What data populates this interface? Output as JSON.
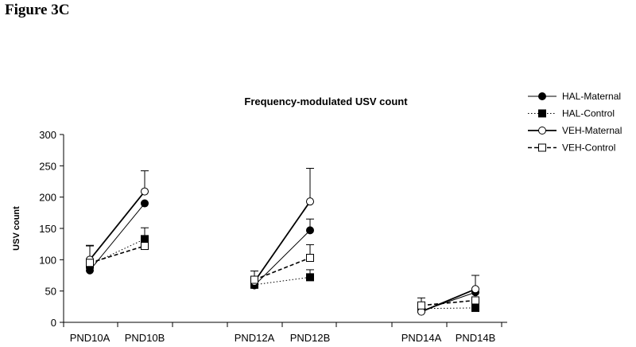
{
  "figure_label": "Figure 3C",
  "chart_data": {
    "type": "line",
    "title": "Frequency-modulated USV count",
    "xlabel": "",
    "ylabel": "USV count",
    "ylim": [
      0,
      300
    ],
    "yticks": [
      0,
      50,
      100,
      150,
      200,
      250,
      300
    ],
    "categories": [
      "PND10A",
      "PND10B",
      "PND12A",
      "PND12B",
      "PND14A",
      "PND14B"
    ],
    "segments": [
      [
        "PND10A",
        "PND10B"
      ],
      [
        "PND12A",
        "PND12B"
      ],
      [
        "PND14A",
        "PND14B"
      ]
    ],
    "legend_position": "right",
    "series": [
      {
        "name": "HAL-Maternal",
        "marker": "filled-circle",
        "line": "solid-thin",
        "color": "#000000",
        "values": [
          83,
          190,
          59,
          147,
          18,
          48
        ],
        "error_plus": [
          0,
          0,
          0,
          18,
          0,
          0
        ]
      },
      {
        "name": "HAL-Control",
        "marker": "filled-square",
        "line": "dotted",
        "color": "#000000",
        "values": [
          92,
          133,
          60,
          72,
          22,
          23
        ],
        "error_plus": [
          0,
          18,
          0,
          12,
          0,
          0
        ]
      },
      {
        "name": "VEH-Maternal",
        "marker": "open-circle",
        "line": "solid-thick",
        "color": "#000000",
        "values": [
          100,
          209,
          65,
          193,
          17,
          53
        ],
        "error_plus": [
          22,
          33,
          17,
          53,
          0,
          22
        ]
      },
      {
        "name": "VEH-Control",
        "marker": "open-square",
        "line": "dashed",
        "color": "#000000",
        "values": [
          95,
          122,
          68,
          103,
          27,
          35
        ],
        "error_plus": [
          28,
          0,
          0,
          21,
          12,
          0
        ]
      }
    ]
  }
}
